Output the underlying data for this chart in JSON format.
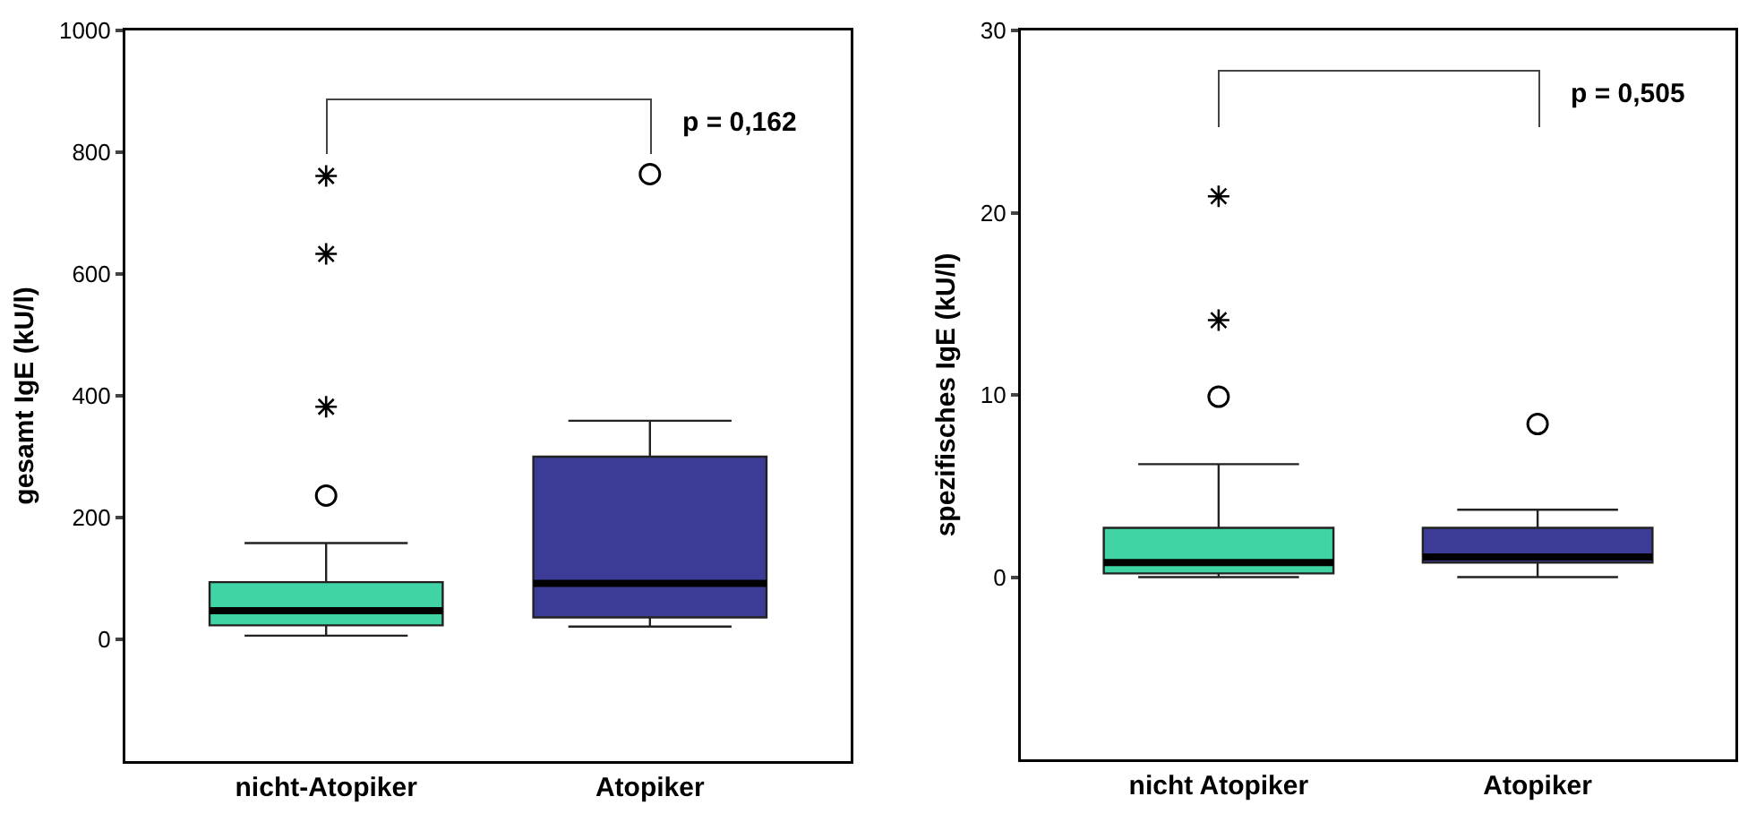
{
  "chart_data": [
    {
      "type": "box",
      "ylabel": "gesamt IgE (kU/l)",
      "categories": [
        "nicht-Atopiker",
        "Atopiker"
      ],
      "ylim": [
        -200,
        1000
      ],
      "yticks": [
        0,
        200,
        400,
        600,
        800,
        1000
      ],
      "grid": false,
      "colors": [
        "#3fd3a6",
        "#3c3c98"
      ],
      "boxes": [
        {
          "low": 6,
          "q1": 23,
          "median": 47,
          "q3": 94,
          "high": 158,
          "outliers": [
            236
          ]
        },
        {
          "low": 21,
          "q1": 36,
          "median": 92,
          "q3": 300,
          "high": 359,
          "outliers": [
            764
          ]
        }
      ],
      "series": [
        {
          "type": "scatter",
          "marker": "cross",
          "color": "#000000",
          "x": [
            "nicht-Atopiker",
            "nicht-Atopiker",
            "nicht-Atopiker"
          ],
          "values": [
            382,
            633,
            761
          ]
        }
      ],
      "annotations": [
        "p = 0,162"
      ]
    },
    {
      "type": "box",
      "ylabel": "spezifisches IgE (kU/l)",
      "categories": [
        "nicht Atopiker",
        "Atopiker"
      ],
      "ylim": [
        -10,
        30
      ],
      "yticks": [
        0,
        10,
        20,
        30
      ],
      "grid": false,
      "colors": [
        "#3fd3a6",
        "#3c3c98"
      ],
      "boxes": [
        {
          "low": 0,
          "q1": 0.2,
          "median": 0.8,
          "q3": 2.7,
          "high": 6.2,
          "outliers": [
            9.9
          ]
        },
        {
          "low": 0,
          "q1": 0.8,
          "median": 1.1,
          "q3": 2.7,
          "high": 3.7,
          "outliers": [
            8.4
          ]
        }
      ],
      "series": [
        {
          "type": "scatter",
          "marker": "cross",
          "color": "#000000",
          "x": [
            "nicht Atopiker",
            "nicht Atopiker"
          ],
          "values": [
            14.1,
            20.9
          ]
        }
      ],
      "annotations": [
        "p = 0,505"
      ]
    }
  ]
}
